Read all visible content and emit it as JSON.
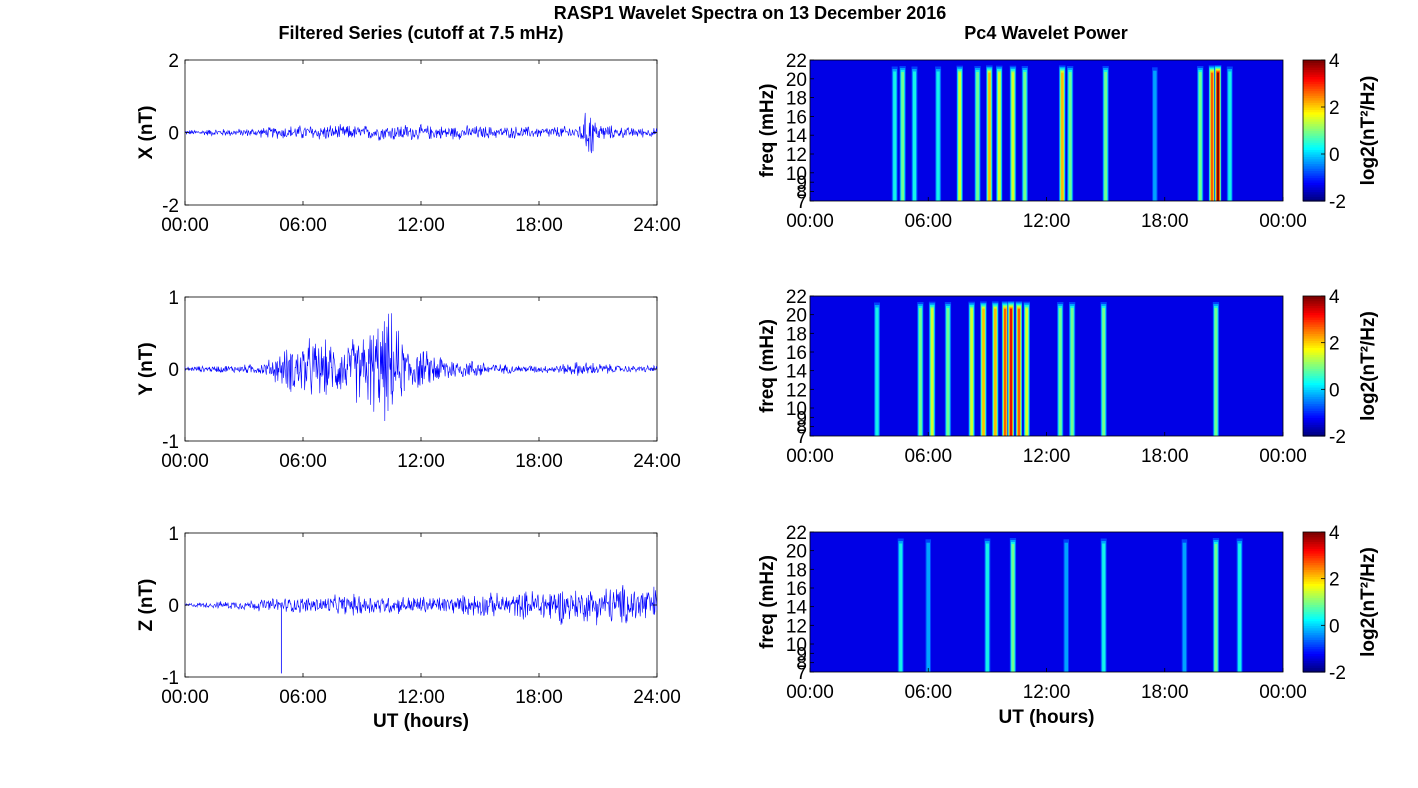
{
  "figure": {
    "title": "RASP1 Wavelet Spectra on 13 December 2016",
    "left_column_title": "Filtered Series (cutoff at 7.5 mHz)",
    "right_column_title": "Pc4 Wavelet Power",
    "xlabel": "UT (hours)",
    "colorbar_label": "log2(nT²/Hz)"
  },
  "chart_data": [
    {
      "type": "line",
      "component": "X",
      "ylabel": "X (nT)",
      "ylim": [
        -2,
        2
      ],
      "yticks": [
        -2,
        0,
        2
      ],
      "xlim": [
        0,
        24
      ],
      "xticks": [
        "00:00",
        "06:00",
        "12:00",
        "18:00",
        "24:00"
      ],
      "color": "#0000ff",
      "envelope": {
        "hours": [
          0,
          1,
          2,
          3,
          4,
          5,
          6,
          7,
          8,
          9,
          10,
          11,
          12,
          13,
          14,
          15,
          16,
          17,
          18,
          19,
          20,
          20.6,
          21,
          22,
          23,
          24
        ],
        "amplitude": [
          0.08,
          0.1,
          0.12,
          0.12,
          0.16,
          0.22,
          0.24,
          0.26,
          0.24,
          0.22,
          0.26,
          0.28,
          0.24,
          0.22,
          0.22,
          0.22,
          0.18,
          0.2,
          0.18,
          0.2,
          0.22,
          0.9,
          0.3,
          0.18,
          0.16,
          0.14
        ]
      }
    },
    {
      "type": "line",
      "component": "Y",
      "ylabel": "Y (nT)",
      "ylim": [
        -1,
        1
      ],
      "yticks": [
        -1,
        0,
        1
      ],
      "xlim": [
        0,
        24
      ],
      "xticks": [
        "00:00",
        "06:00",
        "12:00",
        "18:00",
        "24:00"
      ],
      "color": "#0000ff",
      "envelope": {
        "hours": [
          0,
          1,
          2,
          3,
          4,
          5,
          6,
          7,
          8,
          9,
          10,
          10.5,
          11,
          12,
          13,
          14,
          15,
          16,
          17,
          18,
          19,
          20,
          21,
          22,
          23,
          24
        ],
        "amplitude": [
          0.04,
          0.05,
          0.06,
          0.07,
          0.1,
          0.3,
          0.5,
          0.45,
          0.4,
          0.6,
          0.8,
          0.9,
          0.5,
          0.3,
          0.25,
          0.15,
          0.14,
          0.08,
          0.06,
          0.06,
          0.07,
          0.12,
          0.1,
          0.06,
          0.05,
          0.06
        ]
      }
    },
    {
      "type": "line",
      "component": "Z",
      "ylabel": "Z (nT)",
      "ylim": [
        -1,
        1
      ],
      "yticks": [
        -1,
        0,
        1
      ],
      "xlim": [
        0,
        24
      ],
      "xticks": [
        "00:00",
        "06:00",
        "12:00",
        "18:00",
        "24:00"
      ],
      "xlabel": "UT (hours)",
      "color": "#0000ff",
      "envelope": {
        "hours": [
          0,
          1,
          2,
          3,
          4,
          5,
          6,
          7,
          8,
          9,
          10,
          11,
          12,
          13,
          14,
          15,
          16,
          17,
          18,
          19,
          20,
          21,
          22,
          23,
          24
        ],
        "amplitude": [
          0.03,
          0.04,
          0.06,
          0.08,
          0.1,
          0.12,
          0.13,
          0.14,
          0.16,
          0.18,
          0.15,
          0.14,
          0.15,
          0.14,
          0.15,
          0.2,
          0.18,
          0.2,
          0.28,
          0.3,
          0.25,
          0.3,
          0.32,
          0.35,
          0.3
        ]
      },
      "spikes": [
        {
          "hour": 4.9,
          "value": -0.95
        }
      ]
    },
    {
      "type": "heatmap",
      "component": "X",
      "ylabel": "freq (mHz)",
      "yticks": [
        7,
        8,
        9,
        10,
        12,
        14,
        16,
        18,
        20,
        22
      ],
      "ylim": [
        7,
        22
      ],
      "xlim": [
        0,
        24
      ],
      "xticks": [
        "00:00",
        "06:00",
        "12:00",
        "18:00",
        "00:00"
      ],
      "colorbar": {
        "colormap": "jet",
        "range": [
          -2,
          4
        ],
        "ticks": [
          -2,
          0,
          2,
          4
        ],
        "label": "log2(nT²/Hz)"
      },
      "streaks": [
        {
          "hour": 4.3,
          "power": 0.8
        },
        {
          "hour": 4.7,
          "power": 1.2
        },
        {
          "hour": 5.3,
          "power": 0.6
        },
        {
          "hour": 6.5,
          "power": 0.9
        },
        {
          "hour": 7.6,
          "power": 1.8
        },
        {
          "hour": 8.5,
          "power": 1.2
        },
        {
          "hour": 9.1,
          "power": 2.2
        },
        {
          "hour": 9.6,
          "power": 1.6
        },
        {
          "hour": 10.3,
          "power": 2.0
        },
        {
          "hour": 10.9,
          "power": 1.4
        },
        {
          "hour": 12.8,
          "power": 2.4
        },
        {
          "hour": 13.2,
          "power": 1.5
        },
        {
          "hour": 15.0,
          "power": 1.0
        },
        {
          "hour": 17.5,
          "power": 0.2
        },
        {
          "hour": 19.8,
          "power": 1.0
        },
        {
          "hour": 20.4,
          "power": 2.8
        },
        {
          "hour": 20.7,
          "power": 4.0
        },
        {
          "hour": 21.3,
          "power": 0.6
        }
      ]
    },
    {
      "type": "heatmap",
      "component": "Y",
      "ylabel": "freq (mHz)",
      "yticks": [
        7,
        8,
        9,
        10,
        12,
        14,
        16,
        18,
        20,
        22
      ],
      "ylim": [
        7,
        22
      ],
      "xlim": [
        0,
        24
      ],
      "xticks": [
        "00:00",
        "06:00",
        "12:00",
        "18:00",
        "00:00"
      ],
      "colorbar": {
        "colormap": "jet",
        "range": [
          -2,
          4
        ],
        "ticks": [
          -2,
          0,
          2,
          4
        ],
        "label": "log2(nT²/Hz)"
      },
      "streaks": [
        {
          "hour": 3.4,
          "power": 0.4
        },
        {
          "hour": 5.6,
          "power": 1.0
        },
        {
          "hour": 6.2,
          "power": 1.6
        },
        {
          "hour": 7.0,
          "power": 1.4
        },
        {
          "hour": 8.2,
          "power": 2.0
        },
        {
          "hour": 8.8,
          "power": 2.6
        },
        {
          "hour": 9.4,
          "power": 2.2
        },
        {
          "hour": 9.9,
          "power": 3.0
        },
        {
          "hour": 10.2,
          "power": 3.6
        },
        {
          "hour": 10.6,
          "power": 2.8
        },
        {
          "hour": 11.0,
          "power": 2.0
        },
        {
          "hour": 12.7,
          "power": 1.4
        },
        {
          "hour": 13.3,
          "power": 1.0
        },
        {
          "hour": 14.9,
          "power": 1.2
        },
        {
          "hour": 20.6,
          "power": 1.2
        }
      ]
    },
    {
      "type": "heatmap",
      "component": "Z",
      "ylabel": "freq (mHz)",
      "yticks": [
        7,
        8,
        9,
        10,
        12,
        14,
        16,
        18,
        20,
        22
      ],
      "ylim": [
        7,
        22
      ],
      "xlim": [
        0,
        24
      ],
      "xticks": [
        "00:00",
        "06:00",
        "12:00",
        "18:00",
        "00:00"
      ],
      "xlabel": "UT (hours)",
      "colorbar": {
        "colormap": "jet",
        "range": [
          -2,
          4
        ],
        "ticks": [
          -2,
          0,
          2,
          4
        ],
        "label": "log2(nT²/Hz)"
      },
      "streaks": [
        {
          "hour": 4.6,
          "power": 0.6
        },
        {
          "hour": 6.0,
          "power": -0.2
        },
        {
          "hour": 9.0,
          "power": 0.4
        },
        {
          "hour": 10.3,
          "power": 1.0
        },
        {
          "hour": 13.0,
          "power": -0.2
        },
        {
          "hour": 14.9,
          "power": 0.4
        },
        {
          "hour": 19.0,
          "power": 0.0
        },
        {
          "hour": 20.6,
          "power": 1.2
        },
        {
          "hour": 21.8,
          "power": 0.4
        }
      ]
    }
  ]
}
